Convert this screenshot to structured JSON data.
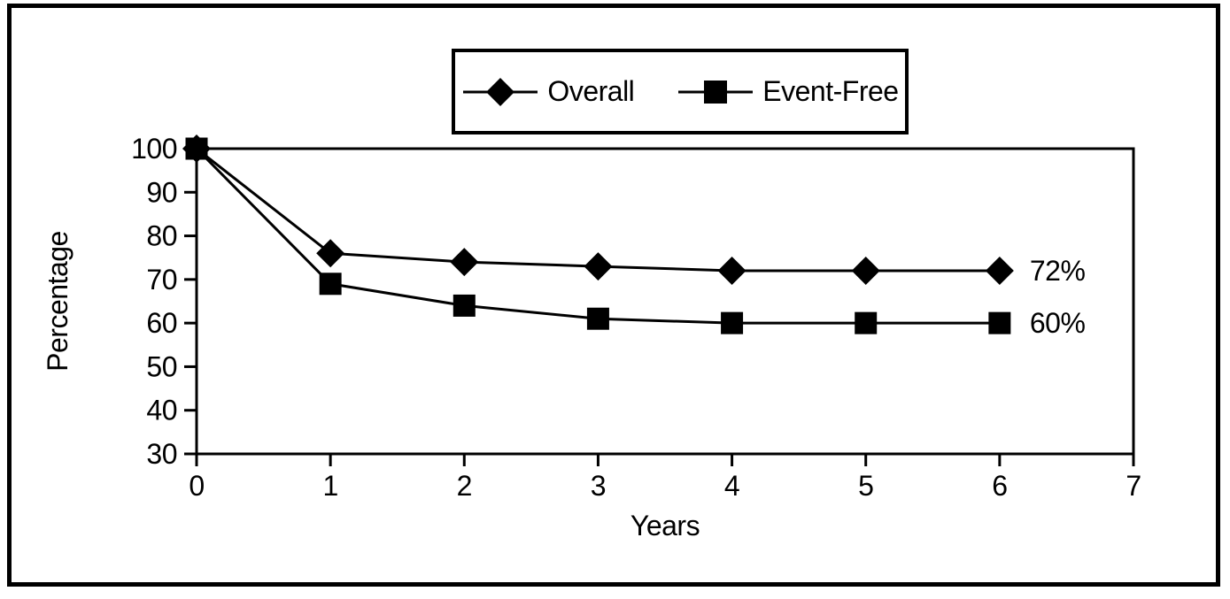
{
  "figure": {
    "background": "#ffffff",
    "border_color": "#000000",
    "ink_color": "#000000"
  },
  "legend": {
    "items": [
      {
        "label": "Overall",
        "marker": "diamond"
      },
      {
        "label": "Event-Free",
        "marker": "square"
      }
    ]
  },
  "chart_data": {
    "type": "line",
    "title": "",
    "xlabel": "Years",
    "ylabel": "Percentage",
    "x": [
      0,
      1,
      2,
      3,
      4,
      5,
      6
    ],
    "series": [
      {
        "name": "Overall",
        "marker": "diamond",
        "values": [
          100,
          76,
          74,
          73,
          72,
          72,
          72
        ],
        "end_label": "72%"
      },
      {
        "name": "Event-Free",
        "marker": "square",
        "values": [
          100,
          69,
          64,
          61,
          60,
          60,
          60
        ],
        "end_label": "60%"
      }
    ],
    "xlim": [
      0,
      7
    ],
    "ylim": [
      30,
      100
    ],
    "x_ticks": [
      0,
      1,
      2,
      3,
      4,
      5,
      6,
      7
    ],
    "y_ticks": [
      100,
      90,
      80,
      70,
      60,
      50,
      40,
      30
    ],
    "grid": false,
    "legend_position": "top-center",
    "series_color": "#000000"
  }
}
